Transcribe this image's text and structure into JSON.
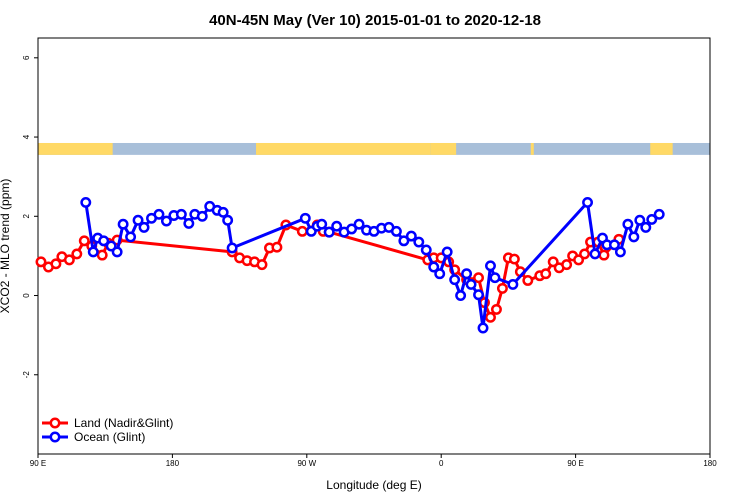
{
  "chart_data": {
    "type": "line",
    "title": "40N-45N May (Ver 10)   2015-01-01 to 2020-12-18",
    "xlabel": "Longitude (deg E)",
    "ylabel": "XCO2 - MLO trend (ppm)",
    "x_ticks": [
      {
        "value": -90,
        "label": "90 E"
      },
      {
        "value": 0,
        "label": "180"
      },
      {
        "value": 90,
        "label": "90 W"
      },
      {
        "value": 180,
        "label": "0"
      },
      {
        "value": 270,
        "label": "90 E"
      },
      {
        "value": 360,
        "label": "180"
      }
    ],
    "y_ticks": [
      {
        "value": -2,
        "label": "-2"
      },
      {
        "value": 0,
        "label": "0"
      },
      {
        "value": 2,
        "label": "2"
      },
      {
        "value": 4,
        "label": "4"
      },
      {
        "value": 6,
        "label": "6"
      }
    ],
    "xlim": [
      -90,
      360
    ],
    "ylim": [
      -4,
      6.5
    ],
    "surface_band": {
      "y_range": [
        3.55,
        3.85
      ],
      "land_color": "#FFD966",
      "ocean_color": "#A8BFD9",
      "land_segments": [
        [
          -90,
          -40
        ],
        [
          56,
          173
        ],
        [
          173,
          190
        ],
        [
          240,
          242
        ],
        [
          320,
          335
        ]
      ]
    },
    "series": [
      {
        "name": "Land (Nadir&Glint)",
        "color": "#FF0000",
        "points": [
          [
            -88,
            0.85
          ],
          [
            -83,
            0.72
          ],
          [
            -78,
            0.8
          ],
          [
            -74,
            0.98
          ],
          [
            -69,
            0.9
          ],
          [
            -64,
            1.05
          ],
          [
            -59,
            1.38
          ],
          [
            -54,
            1.25
          ],
          [
            -47,
            1.02
          ],
          [
            -43,
            1.32
          ],
          [
            -37,
            1.4
          ],
          [
            40,
            1.1
          ],
          [
            45,
            0.95
          ],
          [
            50,
            0.88
          ],
          [
            55,
            0.85
          ],
          [
            60,
            0.78
          ],
          [
            65,
            1.2
          ],
          [
            70,
            1.22
          ],
          [
            76,
            1.78
          ],
          [
            87,
            1.62
          ],
          [
            93,
            1.63
          ],
          [
            97,
            1.78
          ],
          [
            101,
            1.62
          ],
          [
            105,
            1.6
          ],
          [
            171,
            0.9
          ],
          [
            175,
            0.95
          ],
          [
            180,
            0.95
          ],
          [
            185,
            0.85
          ],
          [
            189,
            0.65
          ],
          [
            197,
            0.4
          ],
          [
            205,
            0.45
          ],
          [
            209,
            -0.18
          ],
          [
            213,
            -0.55
          ],
          [
            217,
            -0.35
          ],
          [
            221,
            0.18
          ],
          [
            225,
            0.95
          ],
          [
            229,
            0.92
          ],
          [
            233,
            0.6
          ],
          [
            238,
            0.38
          ],
          [
            246,
            0.5
          ],
          [
            250,
            0.55
          ],
          [
            255,
            0.85
          ],
          [
            259,
            0.7
          ],
          [
            264,
            0.78
          ],
          [
            268,
            1.0
          ],
          [
            272,
            0.9
          ],
          [
            276,
            1.05
          ],
          [
            280,
            1.35
          ],
          [
            285,
            1.35
          ],
          [
            289,
            1.02
          ],
          [
            299,
            1.42
          ]
        ]
      },
      {
        "name": "Ocean (Glint)",
        "color": "#0000FF",
        "points": [
          [
            -58,
            2.35
          ],
          [
            -53,
            1.1
          ],
          [
            -50,
            1.45
          ],
          [
            -46,
            1.38
          ],
          [
            -41,
            1.25
          ],
          [
            -37,
            1.1
          ],
          [
            -33,
            1.8
          ],
          [
            -28,
            1.48
          ],
          [
            -23,
            1.9
          ],
          [
            -19,
            1.72
          ],
          [
            -14,
            1.95
          ],
          [
            -9,
            2.05
          ],
          [
            -4,
            1.88
          ],
          [
            1,
            2.02
          ],
          [
            6,
            2.05
          ],
          [
            11,
            1.82
          ],
          [
            15,
            2.05
          ],
          [
            20,
            2.0
          ],
          [
            25,
            2.25
          ],
          [
            30,
            2.15
          ],
          [
            34,
            2.1
          ],
          [
            37,
            1.9
          ],
          [
            40,
            1.2
          ],
          [
            89,
            1.95
          ],
          [
            93,
            1.62
          ],
          [
            97,
            1.75
          ],
          [
            100,
            1.8
          ],
          [
            105,
            1.6
          ],
          [
            110,
            1.75
          ],
          [
            115,
            1.6
          ],
          [
            120,
            1.68
          ],
          [
            125,
            1.8
          ],
          [
            130,
            1.65
          ],
          [
            135,
            1.62
          ],
          [
            140,
            1.7
          ],
          [
            145,
            1.72
          ],
          [
            150,
            1.62
          ],
          [
            155,
            1.38
          ],
          [
            160,
            1.5
          ],
          [
            165,
            1.35
          ],
          [
            170,
            1.15
          ],
          [
            175,
            0.72
          ],
          [
            179,
            0.55
          ],
          [
            184,
            1.1
          ],
          [
            189,
            0.4
          ],
          [
            193,
            0.0
          ],
          [
            197,
            0.55
          ],
          [
            200,
            0.28
          ],
          [
            205,
            0.02
          ],
          [
            208,
            -0.82
          ],
          [
            213,
            0.75
          ],
          [
            216,
            0.45
          ],
          [
            228,
            0.28
          ],
          [
            278,
            2.35
          ],
          [
            283,
            1.05
          ],
          [
            288,
            1.45
          ],
          [
            291,
            1.28
          ],
          [
            296,
            1.28
          ],
          [
            300,
            1.1
          ],
          [
            305,
            1.8
          ],
          [
            309,
            1.48
          ],
          [
            313,
            1.9
          ],
          [
            317,
            1.72
          ],
          [
            321,
            1.92
          ],
          [
            326,
            2.05
          ]
        ]
      }
    ],
    "grid": false,
    "legend_position": "bottom-left"
  }
}
